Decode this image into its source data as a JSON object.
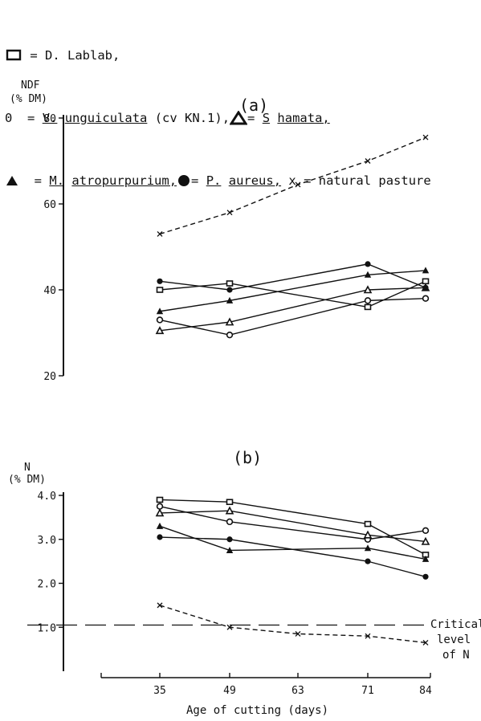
{
  "legend": {
    "lablab_symbol": "open-square",
    "lablab_text": "= D. Lablab,",
    "vigna_symbol_text": "0",
    "vigna_text_eq": "=",
    "vigna_genus": "V.",
    "vigna_species": "unguiculata",
    "vigna_cv": "(cv KN.1),",
    "hamata_symbol": "open-triangle",
    "hamata_eq": "=",
    "hamata_genus": "S",
    "hamata_species": "hamata,",
    "atro_symbol": "filled-triangle",
    "atro_eq": "=",
    "atro_genus": "M.",
    "atro_species": "atropurpurium,",
    "aureus_symbol": "filled-circle",
    "aureus_eq": "=",
    "aureus_genus": "P.",
    "aureus_species": "aureus,",
    "pasture_text": "x = natural pasture"
  },
  "chart_data": [
    {
      "type": "line",
      "title": "(a)",
      "ylabel": "NDF\n(% DM)",
      "ylabel_line1": "NDF",
      "ylabel_line2": "(% DM)",
      "yticks": [
        "80",
        "60",
        "40",
        "20"
      ],
      "ylim": [
        20,
        80
      ],
      "x": [
        35,
        49,
        63,
        71,
        84
      ],
      "series": [
        {
          "name": "D. Lablab",
          "marker": "open-square",
          "line": "solid",
          "x": [
            35,
            49,
            71,
            84
          ],
          "values": [
            40,
            41.5,
            36,
            42
          ]
        },
        {
          "name": "V. unguiculata (cv KN.1)",
          "marker": "open-circle",
          "line": "solid",
          "x": [
            35,
            49,
            71,
            84
          ],
          "values": [
            33,
            29.5,
            37.5,
            38
          ]
        },
        {
          "name": "S hamata",
          "marker": "open-triangle",
          "line": "solid",
          "x": [
            35,
            49,
            71,
            84
          ],
          "values": [
            30.5,
            32.5,
            40,
            40.5
          ]
        },
        {
          "name": "M. atropurpurium",
          "marker": "filled-triangle",
          "line": "solid",
          "x": [
            35,
            49,
            71,
            84
          ],
          "values": [
            35,
            37.5,
            43.5,
            44.5
          ]
        },
        {
          "name": "P. aureus",
          "marker": "filled-circle",
          "line": "solid",
          "x": [
            35,
            49,
            71,
            84
          ],
          "values": [
            42,
            40,
            46,
            40.5
          ]
        },
        {
          "name": "natural pasture",
          "marker": "x",
          "line": "dashed",
          "x": [
            35,
            49,
            63,
            71,
            84
          ],
          "values": [
            53,
            58,
            64.5,
            70,
            75.5
          ]
        }
      ]
    },
    {
      "type": "line",
      "title": "(b)",
      "ylabel": "N\n(% DM)",
      "ylabel_line1": "N",
      "ylabel_line2": "(% DM)",
      "xlabel": "Age of cutting (days)",
      "yticks": [
        "4.0",
        "3.0",
        "2.0",
        "1.0"
      ],
      "ylim": [
        0,
        4.0
      ],
      "x": [
        35,
        49,
        63,
        71,
        84
      ],
      "xtick_labels": [
        "35",
        "49",
        "63",
        "71",
        "84"
      ],
      "series": [
        {
          "name": "D. Lablab",
          "marker": "open-square",
          "line": "solid",
          "x": [
            35,
            49,
            71,
            84
          ],
          "values": [
            3.9,
            3.85,
            3.35,
            2.65
          ]
        },
        {
          "name": "V. unguiculata (cv KN.1)",
          "marker": "open-circle",
          "line": "solid",
          "x": [
            35,
            49,
            71,
            84
          ],
          "values": [
            3.75,
            3.4,
            3.0,
            3.2
          ]
        },
        {
          "name": "S hamata",
          "marker": "open-triangle",
          "line": "solid",
          "x": [
            35,
            49,
            71,
            84
          ],
          "values": [
            3.6,
            3.65,
            3.1,
            2.95
          ]
        },
        {
          "name": "M. atropurpurium",
          "marker": "filled-triangle",
          "line": "solid",
          "x": [
            35,
            49,
            71,
            84
          ],
          "values": [
            3.3,
            2.75,
            2.8,
            2.55
          ]
        },
        {
          "name": "P. aureus",
          "marker": "filled-circle",
          "line": "solid",
          "x": [
            35,
            49,
            71,
            84
          ],
          "values": [
            3.05,
            3.0,
            2.5,
            2.15
          ]
        },
        {
          "name": "natural pasture",
          "marker": "x",
          "line": "dashed",
          "x": [
            35,
            49,
            63,
            71,
            84
          ],
          "values": [
            1.5,
            1.0,
            0.85,
            0.8,
            0.65
          ]
        }
      ],
      "reference_line": {
        "value": 1.05,
        "label_line1": "Critical",
        "label_line2": "level",
        "label_line3": "of N",
        "line": "long-dash"
      }
    }
  ]
}
